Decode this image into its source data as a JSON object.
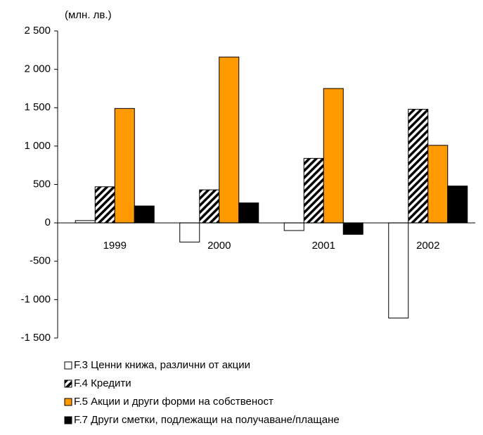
{
  "chart_data": {
    "type": "bar",
    "unit_label": "(млн. лв.)",
    "categories": [
      "1999",
      "2000",
      "2001",
      "2002"
    ],
    "series": [
      {
        "name": "F.3 Ценни книжа, различни от акции",
        "color": "#ffffff",
        "values": [
          30,
          -250,
          -100,
          -1240
        ]
      },
      {
        "name": "F.4 Кредити",
        "color": "#000000",
        "pattern": "diagonal-hatch",
        "values": [
          470,
          430,
          840,
          1480
        ]
      },
      {
        "name": "F.5 Акции и други форми на собственост",
        "color": "#ff9900",
        "values": [
          1490,
          2160,
          1750,
          1010
        ]
      },
      {
        "name": "F.7 Други сметки, подлежащи на получаване/плащане",
        "color": "#000000",
        "values": [
          220,
          260,
          -150,
          480
        ]
      }
    ],
    "ylim": [
      -1500,
      2500
    ],
    "yticks": [
      {
        "value": 2500,
        "label": "2 500"
      },
      {
        "value": 2000,
        "label": "2 000"
      },
      {
        "value": 1500,
        "label": "1 500"
      },
      {
        "value": 1000,
        "label": "1 000"
      },
      500,
      0,
      -500,
      {
        "value": -1000,
        "label": "-1 000"
      },
      {
        "value": -1500,
        "label": "-1 500"
      }
    ],
    "legend": "bottom-left",
    "grid": false
  }
}
